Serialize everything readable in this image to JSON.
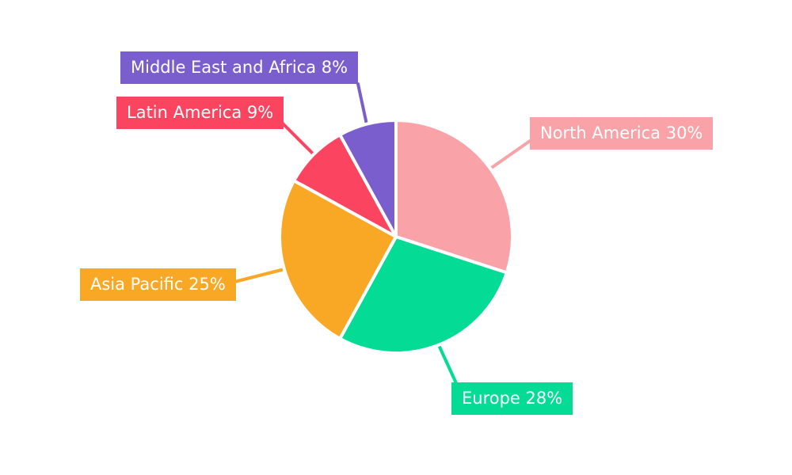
{
  "page": {
    "background_color": "#FFFFFF",
    "text_color": "#FFFFFF"
  },
  "chart_data": {
    "type": "pie",
    "title": "",
    "categories": [
      "North America",
      "Europe",
      "Asia Pacific",
      "Latin America",
      "Middle East and Africa"
    ],
    "values": [
      30,
      28,
      25,
      9,
      8
    ],
    "unit": "%",
    "start_angle_deg": 0,
    "direction": "clockwise",
    "legend_position": "external-callout-boxes-with-leader-lines",
    "slice_gap_color": "#FFFFFF",
    "slices": [
      {
        "label": "North America",
        "value": 30,
        "display": "North America 30%",
        "color": "#F9A3A8"
      },
      {
        "label": "Europe",
        "value": 28,
        "display": "Europe 28%",
        "color": "#04DC95"
      },
      {
        "label": "Asia Pacific",
        "value": 25,
        "display": "Asia Pacific 25%",
        "color": "#F9A825"
      },
      {
        "label": "Latin America",
        "value": 9,
        "display": "Latin America 9%",
        "color": "#FB4560"
      },
      {
        "label": "Middle East and Africa",
        "value": 8,
        "display": "Middle East and Africa 8%",
        "color": "#7B5ECE"
      }
    ]
  }
}
